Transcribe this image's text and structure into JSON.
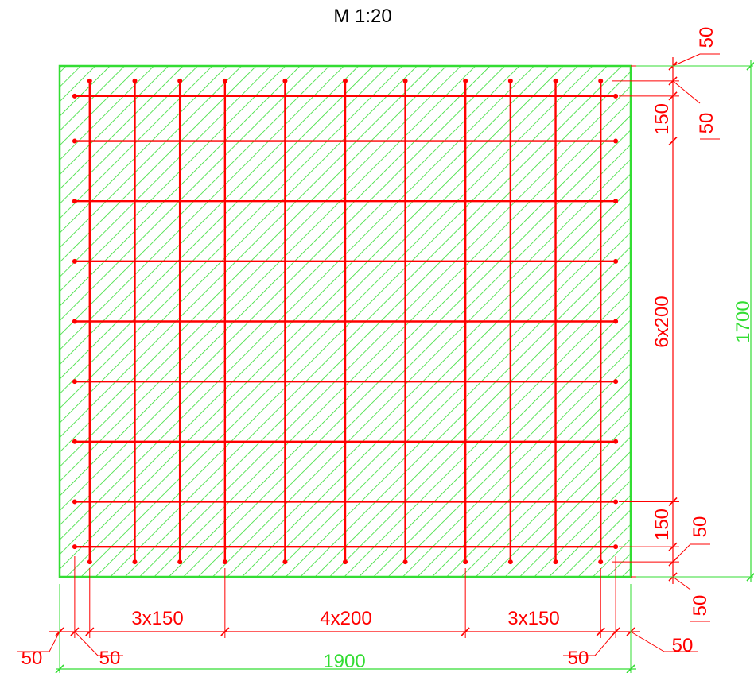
{
  "scale": "M 1:20",
  "colors": {
    "concrete": "#33dd33",
    "rebar": "#ff0000",
    "text": "#000000"
  },
  "slab": {
    "width": 1900,
    "height": 1700
  },
  "rebar": {
    "vertical_bars_x": [
      100,
      250,
      400,
      550,
      750,
      950,
      1150,
      1350,
      1500,
      1650,
      1800
    ],
    "horizontal_bars_y": [
      100,
      250,
      450,
      650,
      850,
      1050,
      1250,
      1450,
      1600
    ]
  },
  "dims": {
    "bottom_segments": [
      "3x150",
      "4x200",
      "3x150"
    ],
    "bottom_cover_labels": [
      "50",
      "50",
      "50",
      "50"
    ],
    "bottom_total": "1900",
    "right_segments": [
      "150",
      "6x200",
      "150"
    ],
    "right_cover_labels": [
      "50",
      "50",
      "50",
      "50"
    ],
    "right_total": "1700"
  }
}
